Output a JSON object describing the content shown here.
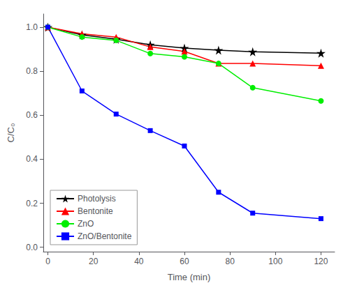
{
  "chart_data": {
    "type": "line",
    "xlabel": "Time (min)",
    "ylabel": "C/C₀",
    "x": [
      0,
      15,
      30,
      45,
      60,
      75,
      90,
      120
    ],
    "series": [
      {
        "name": "Photolysis",
        "color": "#000000",
        "marker": "star",
        "values": [
          1.0,
          0.965,
          0.945,
          0.92,
          0.905,
          0.895,
          0.888,
          0.882
        ]
      },
      {
        "name": "Bentonite",
        "color": "#ff0000",
        "marker": "triangle",
        "values": [
          1.0,
          0.97,
          0.955,
          0.91,
          0.89,
          0.835,
          0.835,
          0.825
        ]
      },
      {
        "name": "ZnO",
        "color": "#00ee00",
        "marker": "circle",
        "values": [
          1.0,
          0.955,
          0.94,
          0.88,
          0.865,
          0.835,
          0.725,
          0.665
        ]
      },
      {
        "name": "ZnO/Bentonite",
        "color": "#0000ff",
        "marker": "square",
        "values": [
          1.0,
          0.71,
          0.605,
          0.53,
          0.46,
          0.25,
          0.155,
          0.13
        ]
      }
    ],
    "xlim": [
      -2,
      126
    ],
    "ylim": [
      -0.02,
      1.06
    ],
    "xticks": [
      0,
      20,
      40,
      60,
      80,
      100,
      120
    ],
    "yticks": [
      {
        "value": 0.0,
        "label": "0.0"
      },
      0.2,
      0.4,
      0.6,
      0.8,
      {
        "value": 1.0,
        "label": "1.0"
      }
    ],
    "legend": "lower left",
    "grid": false
  }
}
